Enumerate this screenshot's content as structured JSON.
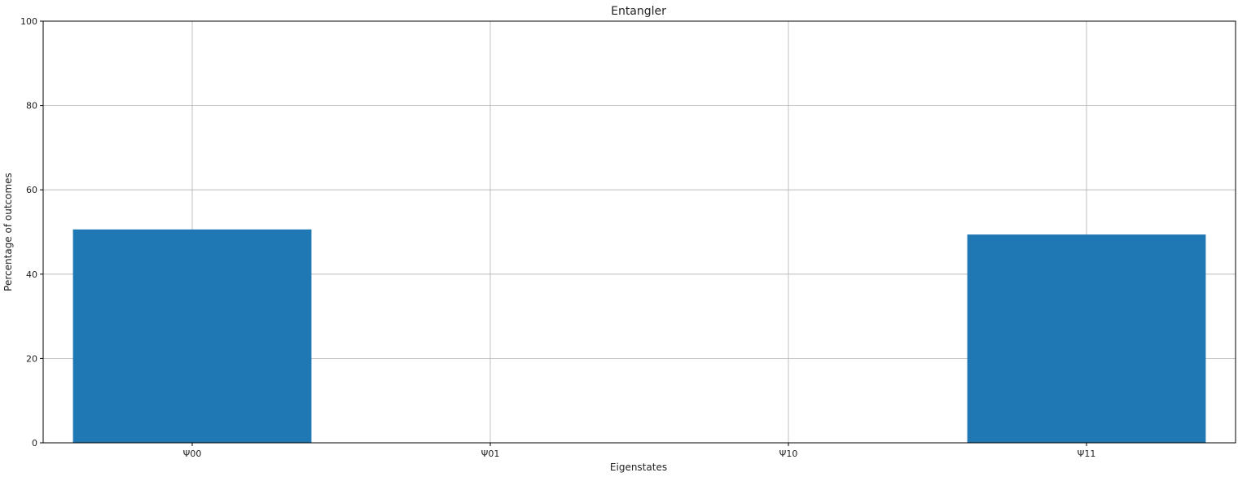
{
  "chart_data": {
    "type": "bar",
    "title": "Entangler",
    "xlabel": "Eigenstates",
    "ylabel": "Percentage of outcomes",
    "categories": [
      "Ψ00",
      "Ψ01",
      "Ψ10",
      "Ψ11"
    ],
    "values": [
      50.6,
      0,
      0,
      49.4
    ],
    "ylim": [
      0,
      100
    ],
    "yticks": [
      "0",
      "20",
      "40",
      "60",
      "80",
      "100"
    ],
    "grid": true,
    "bar_color": "#1f77b4"
  }
}
